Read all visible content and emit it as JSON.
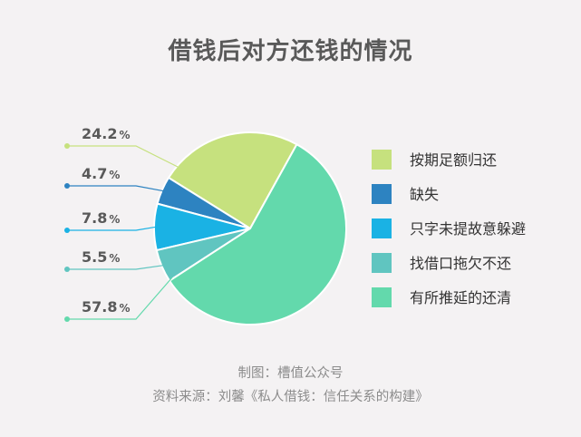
{
  "header": {
    "title": "借钱后对方还钱的情况"
  },
  "chart_data": {
    "type": "pie",
    "title": "借钱后对方还钱的情况",
    "slices": [
      {
        "label": "按期足额归还",
        "value": 24.2,
        "display": "24.2",
        "color": "#c6e17e"
      },
      {
        "label": "缺失",
        "value": 4.7,
        "display": "4.7",
        "color": "#2d83c1"
      },
      {
        "label": "只字未提故意躲避",
        "value": 7.8,
        "display": "7.8",
        "color": "#1ab2e4"
      },
      {
        "label": "找借口拖欠不还",
        "value": 5.5,
        "display": "5.5",
        "color": "#60c5c0"
      },
      {
        "label": "有所推延的还清",
        "value": 57.8,
        "display": "57.8",
        "color": "#63d9ac"
      }
    ],
    "unit": "%",
    "legend_position": "right"
  },
  "footer": {
    "credit": "制图：槽值公众号",
    "source": "资料来源：刘馨《私人借钱：信任关系的构建》"
  }
}
